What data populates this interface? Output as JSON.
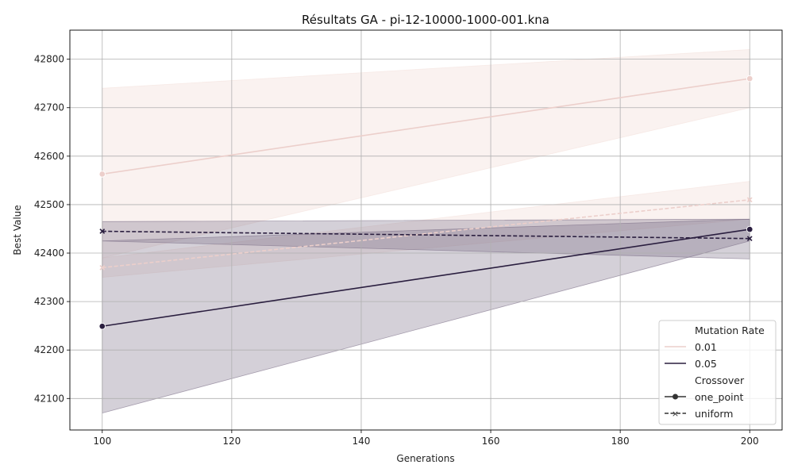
{
  "chart_data": {
    "type": "line",
    "title": "Résultats GA - pi-12-10000-1000-001.kna",
    "xlabel": "Generations",
    "ylabel": "Best Value",
    "xlim": [
      95,
      205
    ],
    "ylim": [
      42035,
      42860
    ],
    "x_ticks": [
      100,
      120,
      140,
      160,
      180,
      200
    ],
    "y_ticks": [
      42100,
      42200,
      42300,
      42400,
      42500,
      42600,
      42700,
      42800
    ],
    "grid": true,
    "legend_position": "bottom-right",
    "colors": {
      "0.01": "#eccfcb",
      "0.05": "#2a1e3f",
      "band_0.01": "#f3e1dc",
      "band_0.05": "#7a6c86"
    },
    "legend": {
      "hue_title": "Mutation Rate",
      "hue_levels": [
        "0.01",
        "0.05"
      ],
      "style_title": "Crossover",
      "style_levels": [
        "one_point",
        "uniform"
      ]
    },
    "series": [
      {
        "mutation_rate": "0.01",
        "crossover": "one_point",
        "x": [
          100,
          200
        ],
        "y": [
          42563,
          42760
        ],
        "ci_low": [
          42390,
          42700
        ],
        "ci_high": [
          42740,
          42820
        ]
      },
      {
        "mutation_rate": "0.01",
        "crossover": "uniform",
        "x": [
          100,
          200
        ],
        "y": [
          42370,
          42510
        ],
        "ci_low": [
          42350,
          42470
        ],
        "ci_high": [
          42390,
          42548
        ]
      },
      {
        "mutation_rate": "0.05",
        "crossover": "one_point",
        "x": [
          100,
          200
        ],
        "y": [
          42249,
          42449
        ],
        "ci_low": [
          42070,
          42425
        ],
        "ci_high": [
          42425,
          42470
        ]
      },
      {
        "mutation_rate": "0.05",
        "crossover": "uniform",
        "x": [
          100,
          200
        ],
        "y": [
          42445,
          42430
        ],
        "ci_low": [
          42425,
          42388
        ],
        "ci_high": [
          42465,
          42470
        ]
      }
    ]
  }
}
